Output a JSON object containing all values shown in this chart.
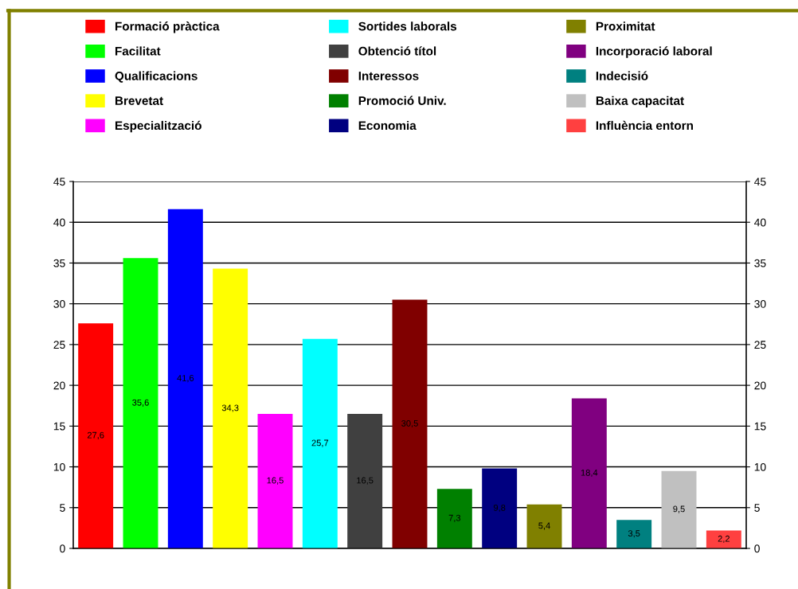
{
  "chart_data": {
    "type": "bar",
    "categories": [
      null,
      null,
      null,
      null,
      null,
      null,
      null,
      null,
      null,
      null,
      null,
      null,
      null,
      null,
      null
    ],
    "series": [
      {
        "name": "Formació pràctica",
        "color": "#ff0000",
        "values": [
          27.6,
          null,
          null,
          null,
          null,
          null,
          null,
          null,
          null,
          null,
          null,
          null,
          null,
          null,
          null
        ],
        "value_labels": [
          "27,6",
          null,
          null,
          null,
          null,
          null,
          null,
          null,
          null,
          null,
          null,
          null,
          null,
          null,
          null
        ]
      },
      {
        "name": "Facilitat",
        "color": "#00ff00",
        "values": [
          null,
          35.6,
          null,
          null,
          null,
          null,
          null,
          null,
          null,
          null,
          null,
          null,
          null,
          null,
          null
        ],
        "value_labels": [
          null,
          "35,6",
          null,
          null,
          null,
          null,
          null,
          null,
          null,
          null,
          null,
          null,
          null,
          null,
          null
        ]
      },
      {
        "name": "Qualificacions",
        "color": "#0000ff",
        "values": [
          null,
          null,
          41.6,
          null,
          null,
          null,
          null,
          null,
          null,
          null,
          null,
          null,
          null,
          null,
          null
        ],
        "value_labels": [
          null,
          null,
          "41,6",
          null,
          null,
          null,
          null,
          null,
          null,
          null,
          null,
          null,
          null,
          null,
          null
        ]
      },
      {
        "name": "Brevetat",
        "color": "#ffff00",
        "values": [
          null,
          null,
          null,
          34.3,
          null,
          null,
          null,
          null,
          null,
          null,
          null,
          null,
          null,
          null,
          null
        ],
        "value_labels": [
          null,
          null,
          null,
          "34,3",
          null,
          null,
          null,
          null,
          null,
          null,
          null,
          null,
          null,
          null,
          null
        ]
      },
      {
        "name": "Especialització",
        "color": "#ff00ff",
        "values": [
          null,
          null,
          null,
          null,
          16.5,
          null,
          null,
          null,
          null,
          null,
          null,
          null,
          null,
          null,
          null
        ],
        "value_labels": [
          null,
          null,
          null,
          null,
          "16,5",
          null,
          null,
          null,
          null,
          null,
          null,
          null,
          null,
          null,
          null
        ]
      },
      {
        "name": "Sortides laborals",
        "color": "#00ffff",
        "values": [
          null,
          null,
          null,
          null,
          null,
          25.7,
          null,
          null,
          null,
          null,
          null,
          null,
          null,
          null,
          null
        ],
        "value_labels": [
          null,
          null,
          null,
          null,
          null,
          "25,7",
          null,
          null,
          null,
          null,
          null,
          null,
          null,
          null,
          null
        ]
      },
      {
        "name": "Obtenció títol",
        "color": "#404040",
        "values": [
          null,
          null,
          null,
          null,
          null,
          null,
          16.5,
          null,
          null,
          null,
          null,
          null,
          null,
          null,
          null
        ],
        "value_labels": [
          null,
          null,
          null,
          null,
          null,
          null,
          "16,5",
          null,
          null,
          null,
          null,
          null,
          null,
          null,
          null
        ]
      },
      {
        "name": "Interessos",
        "color": "#800000",
        "values": [
          null,
          null,
          null,
          null,
          null,
          null,
          null,
          30.5,
          null,
          null,
          null,
          null,
          null,
          null,
          null
        ],
        "value_labels": [
          null,
          null,
          null,
          null,
          null,
          null,
          null,
          "30,5",
          null,
          null,
          null,
          null,
          null,
          null,
          null
        ]
      },
      {
        "name": "Promoció Univ.",
        "color": "#008000",
        "values": [
          null,
          null,
          null,
          null,
          null,
          null,
          null,
          null,
          7.3,
          null,
          null,
          null,
          null,
          null,
          null
        ],
        "value_labels": [
          null,
          null,
          null,
          null,
          null,
          null,
          null,
          null,
          "7,3",
          null,
          null,
          null,
          null,
          null,
          null
        ]
      },
      {
        "name": "Economia",
        "color": "#000080",
        "values": [
          null,
          null,
          null,
          null,
          null,
          null,
          null,
          null,
          null,
          9.8,
          null,
          null,
          null,
          null,
          null
        ],
        "value_labels": [
          null,
          null,
          null,
          null,
          null,
          null,
          null,
          null,
          null,
          "9,8",
          null,
          null,
          null,
          null,
          null
        ]
      },
      {
        "name": "Proximitat",
        "color": "#808000",
        "values": [
          null,
          null,
          null,
          null,
          null,
          null,
          null,
          null,
          null,
          null,
          5.4,
          null,
          null,
          null,
          null
        ],
        "value_labels": [
          null,
          null,
          null,
          null,
          null,
          null,
          null,
          null,
          null,
          null,
          "5,4",
          null,
          null,
          null,
          null
        ]
      },
      {
        "name": "Incorporació laboral",
        "color": "#800080",
        "values": [
          null,
          null,
          null,
          null,
          null,
          null,
          null,
          null,
          null,
          null,
          null,
          18.4,
          null,
          null,
          null
        ],
        "value_labels": [
          null,
          null,
          null,
          null,
          null,
          null,
          null,
          null,
          null,
          null,
          null,
          "18,4",
          null,
          null,
          null
        ]
      },
      {
        "name": "Indecisió",
        "color": "#008080",
        "values": [
          null,
          null,
          null,
          null,
          null,
          null,
          null,
          null,
          null,
          null,
          null,
          null,
          3.5,
          null,
          null
        ],
        "value_labels": [
          null,
          null,
          null,
          null,
          null,
          null,
          null,
          null,
          null,
          null,
          null,
          null,
          "3,5",
          null,
          null
        ]
      },
      {
        "name": "Baixa capacitat",
        "color": "#c0c0c0",
        "values": [
          null,
          null,
          null,
          null,
          null,
          null,
          null,
          null,
          null,
          null,
          null,
          null,
          null,
          9.5,
          null
        ],
        "value_labels": [
          null,
          null,
          null,
          null,
          null,
          null,
          null,
          null,
          null,
          null,
          null,
          null,
          null,
          "9,5",
          null
        ]
      },
      {
        "name": "Influència entorn",
        "color": "#ff4040",
        "values": [
          null,
          null,
          null,
          null,
          null,
          null,
          null,
          null,
          null,
          null,
          null,
          null,
          null,
          null,
          2.2
        ],
        "value_labels": [
          null,
          null,
          null,
          null,
          null,
          null,
          null,
          null,
          null,
          null,
          null,
          null,
          null,
          null,
          "2,2"
        ]
      }
    ],
    "ylim": [
      0,
      45
    ],
    "yticks": [
      0,
      5,
      10,
      15,
      20,
      25,
      30,
      35,
      40,
      45
    ],
    "y2lim": [
      0,
      45
    ],
    "y2ticks": [
      0,
      5,
      10,
      15,
      20,
      25,
      30,
      35,
      40,
      45
    ],
    "grid": "y",
    "legend": "top"
  }
}
